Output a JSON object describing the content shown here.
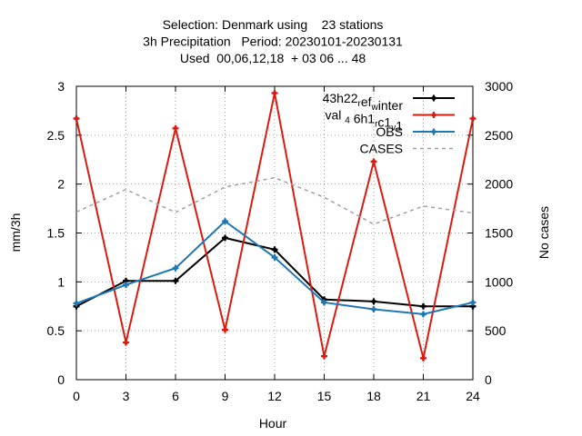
{
  "chart_data": {
    "type": "line",
    "title_lines": [
      "Selection: Denmark using    23 stations",
      "3h Precipitation   Period: 20230101-20230131",
      "Used  00,06,12,18  + 03 06 ... 48"
    ],
    "xlabel": "Hour",
    "ylabel": "mm/3h",
    "y2label": "No cases",
    "x": [
      0,
      3,
      6,
      9,
      12,
      15,
      18,
      21,
      24
    ],
    "xlim": [
      0,
      24
    ],
    "ylim": [
      0,
      3
    ],
    "y2lim": [
      0,
      3000
    ],
    "xticks": [
      "0",
      "3",
      "6",
      "9",
      "12",
      "15",
      "18",
      "21",
      "24"
    ],
    "yticks": [
      "0",
      "0.5",
      "1",
      "1.5",
      "2",
      "2.5",
      "3"
    ],
    "y2ticks": [
      "0",
      "500",
      "1000",
      "1500",
      "2000",
      "2500",
      "3000"
    ],
    "grid": true,
    "legend_position": "top-right",
    "series": [
      {
        "name": "43h22 ref winter",
        "legend": {
          "parts": [
            {
              "t": "43h22"
            },
            {
              "t": "r",
              "sub": true
            },
            {
              "t": "ef"
            },
            {
              "t": "w",
              "sub": true
            },
            {
              "t": "inter"
            }
          ]
        },
        "color": "#000000",
        "axis": "y",
        "values": [
          0.75,
          1.01,
          1.01,
          1.45,
          1.33,
          0.82,
          0.8,
          0.75,
          0.75
        ]
      },
      {
        "name": "val 4 6h1 rc1 v1",
        "legend": {
          "parts": [
            {
              "t": "val "
            },
            {
              "t": "4",
              "sub": true
            },
            {
              "t": " 6h1"
            },
            {
              "t": "r",
              "sub": true
            },
            {
              "t": "c1"
            },
            {
              "t": "v",
              "sub": true
            },
            {
              "t": "1"
            }
          ]
        },
        "color": "#dd1a0f",
        "axis": "y",
        "values": [
          2.67,
          0.38,
          2.57,
          0.51,
          2.93,
          0.24,
          2.23,
          0.22,
          2.67
        ]
      },
      {
        "name": "OBS",
        "legend": {
          "parts": [
            {
              "t": "OBS"
            }
          ]
        },
        "color": "#1f77b4",
        "axis": "y",
        "values": [
          0.78,
          0.97,
          1.14,
          1.62,
          1.25,
          0.79,
          0.72,
          0.67,
          0.79
        ]
      },
      {
        "name": "CASES",
        "legend": {
          "parts": [
            {
              "t": "CASES"
            }
          ]
        },
        "color": "#a0a0a0",
        "axis": "y2",
        "dashed": true,
        "values": [
          1715,
          1945,
          1710,
          1970,
          2065,
          1865,
          1590,
          1775,
          1705
        ]
      }
    ]
  }
}
